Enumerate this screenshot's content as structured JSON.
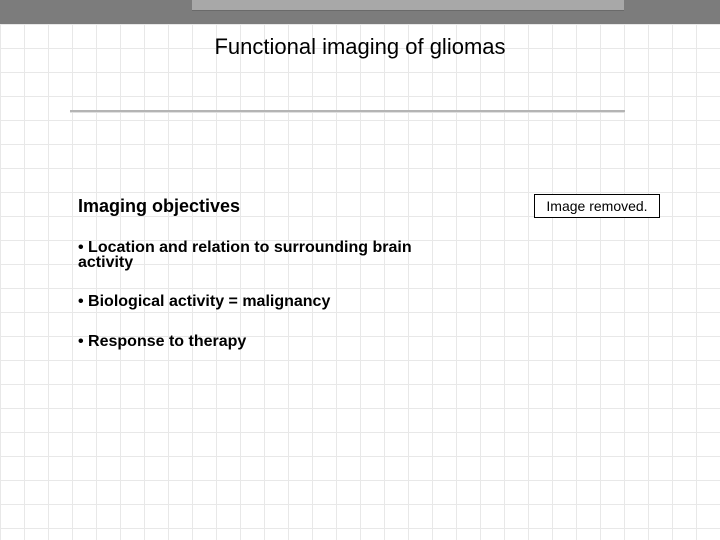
{
  "slide": {
    "background_color": "#ffffff",
    "grid_color": "#e8e8e8",
    "banner_color": "#7c7c7c",
    "banner_inner_color": "#a8a8a8",
    "title": "Functional imaging of gliomas",
    "title_fontsize": 22,
    "title_color": "#000000",
    "divider_color": "#b4b4b4",
    "subheading": "Imaging objectives",
    "subheading_fontsize": 18,
    "bullets": [
      "• Location and relation to surrounding brain activity",
      "• Biological activity = malignancy",
      "• Response to therapy"
    ],
    "bullet_fontsize": 16,
    "image_placeholder": "Image removed.",
    "image_box_border": "#000000"
  }
}
